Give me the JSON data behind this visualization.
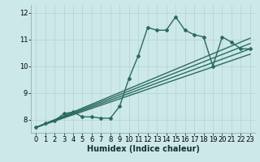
{
  "xlabel": "Humidex (Indice chaleur)",
  "bg_color": "#cce8e8",
  "grid_color": "#b8d4d4",
  "line_color": "#2a6b5e",
  "xlim": [
    -0.5,
    23.5
  ],
  "ylim": [
    7.5,
    12.3
  ],
  "xticks": [
    0,
    1,
    2,
    3,
    4,
    5,
    6,
    7,
    8,
    9,
    10,
    11,
    12,
    13,
    14,
    15,
    16,
    17,
    18,
    19,
    20,
    21,
    22,
    23
  ],
  "yticks": [
    8,
    9,
    10,
    11,
    12
  ],
  "lines": [
    {
      "x": [
        0,
        1,
        2,
        3,
        4,
        5,
        6,
        7,
        8,
        9,
        10,
        11,
        12,
        13,
        14,
        15,
        16,
        17,
        18,
        19,
        20,
        21,
        22,
        23
      ],
      "y": [
        7.7,
        7.85,
        7.95,
        8.22,
        8.28,
        8.1,
        8.1,
        8.05,
        8.05,
        8.5,
        9.55,
        10.4,
        11.45,
        11.35,
        11.35,
        11.85,
        11.35,
        11.18,
        11.1,
        10.0,
        11.1,
        10.9,
        10.65,
        10.65
      ]
    },
    {
      "x": [
        0,
        23
      ],
      "y": [
        7.7,
        10.65
      ]
    },
    {
      "x": [
        0,
        23
      ],
      "y": [
        7.7,
        10.65
      ]
    },
    {
      "x": [
        0,
        23
      ],
      "y": [
        7.7,
        10.65
      ]
    },
    {
      "x": [
        0,
        23
      ],
      "y": [
        7.7,
        10.65
      ]
    }
  ],
  "straight_lines": [
    {
      "x": [
        0,
        23
      ],
      "y": [
        7.7,
        11.0
      ]
    },
    {
      "x": [
        0,
        23
      ],
      "y": [
        7.7,
        10.75
      ]
    },
    {
      "x": [
        0,
        23
      ],
      "y": [
        7.7,
        10.5
      ]
    },
    {
      "x": [
        0,
        23
      ],
      "y": [
        7.7,
        10.25
      ]
    }
  ],
  "marker": "D",
  "markersize": 2.0,
  "linewidth": 1.0,
  "xlabel_fontsize": 7,
  "tick_fontsize": 6
}
